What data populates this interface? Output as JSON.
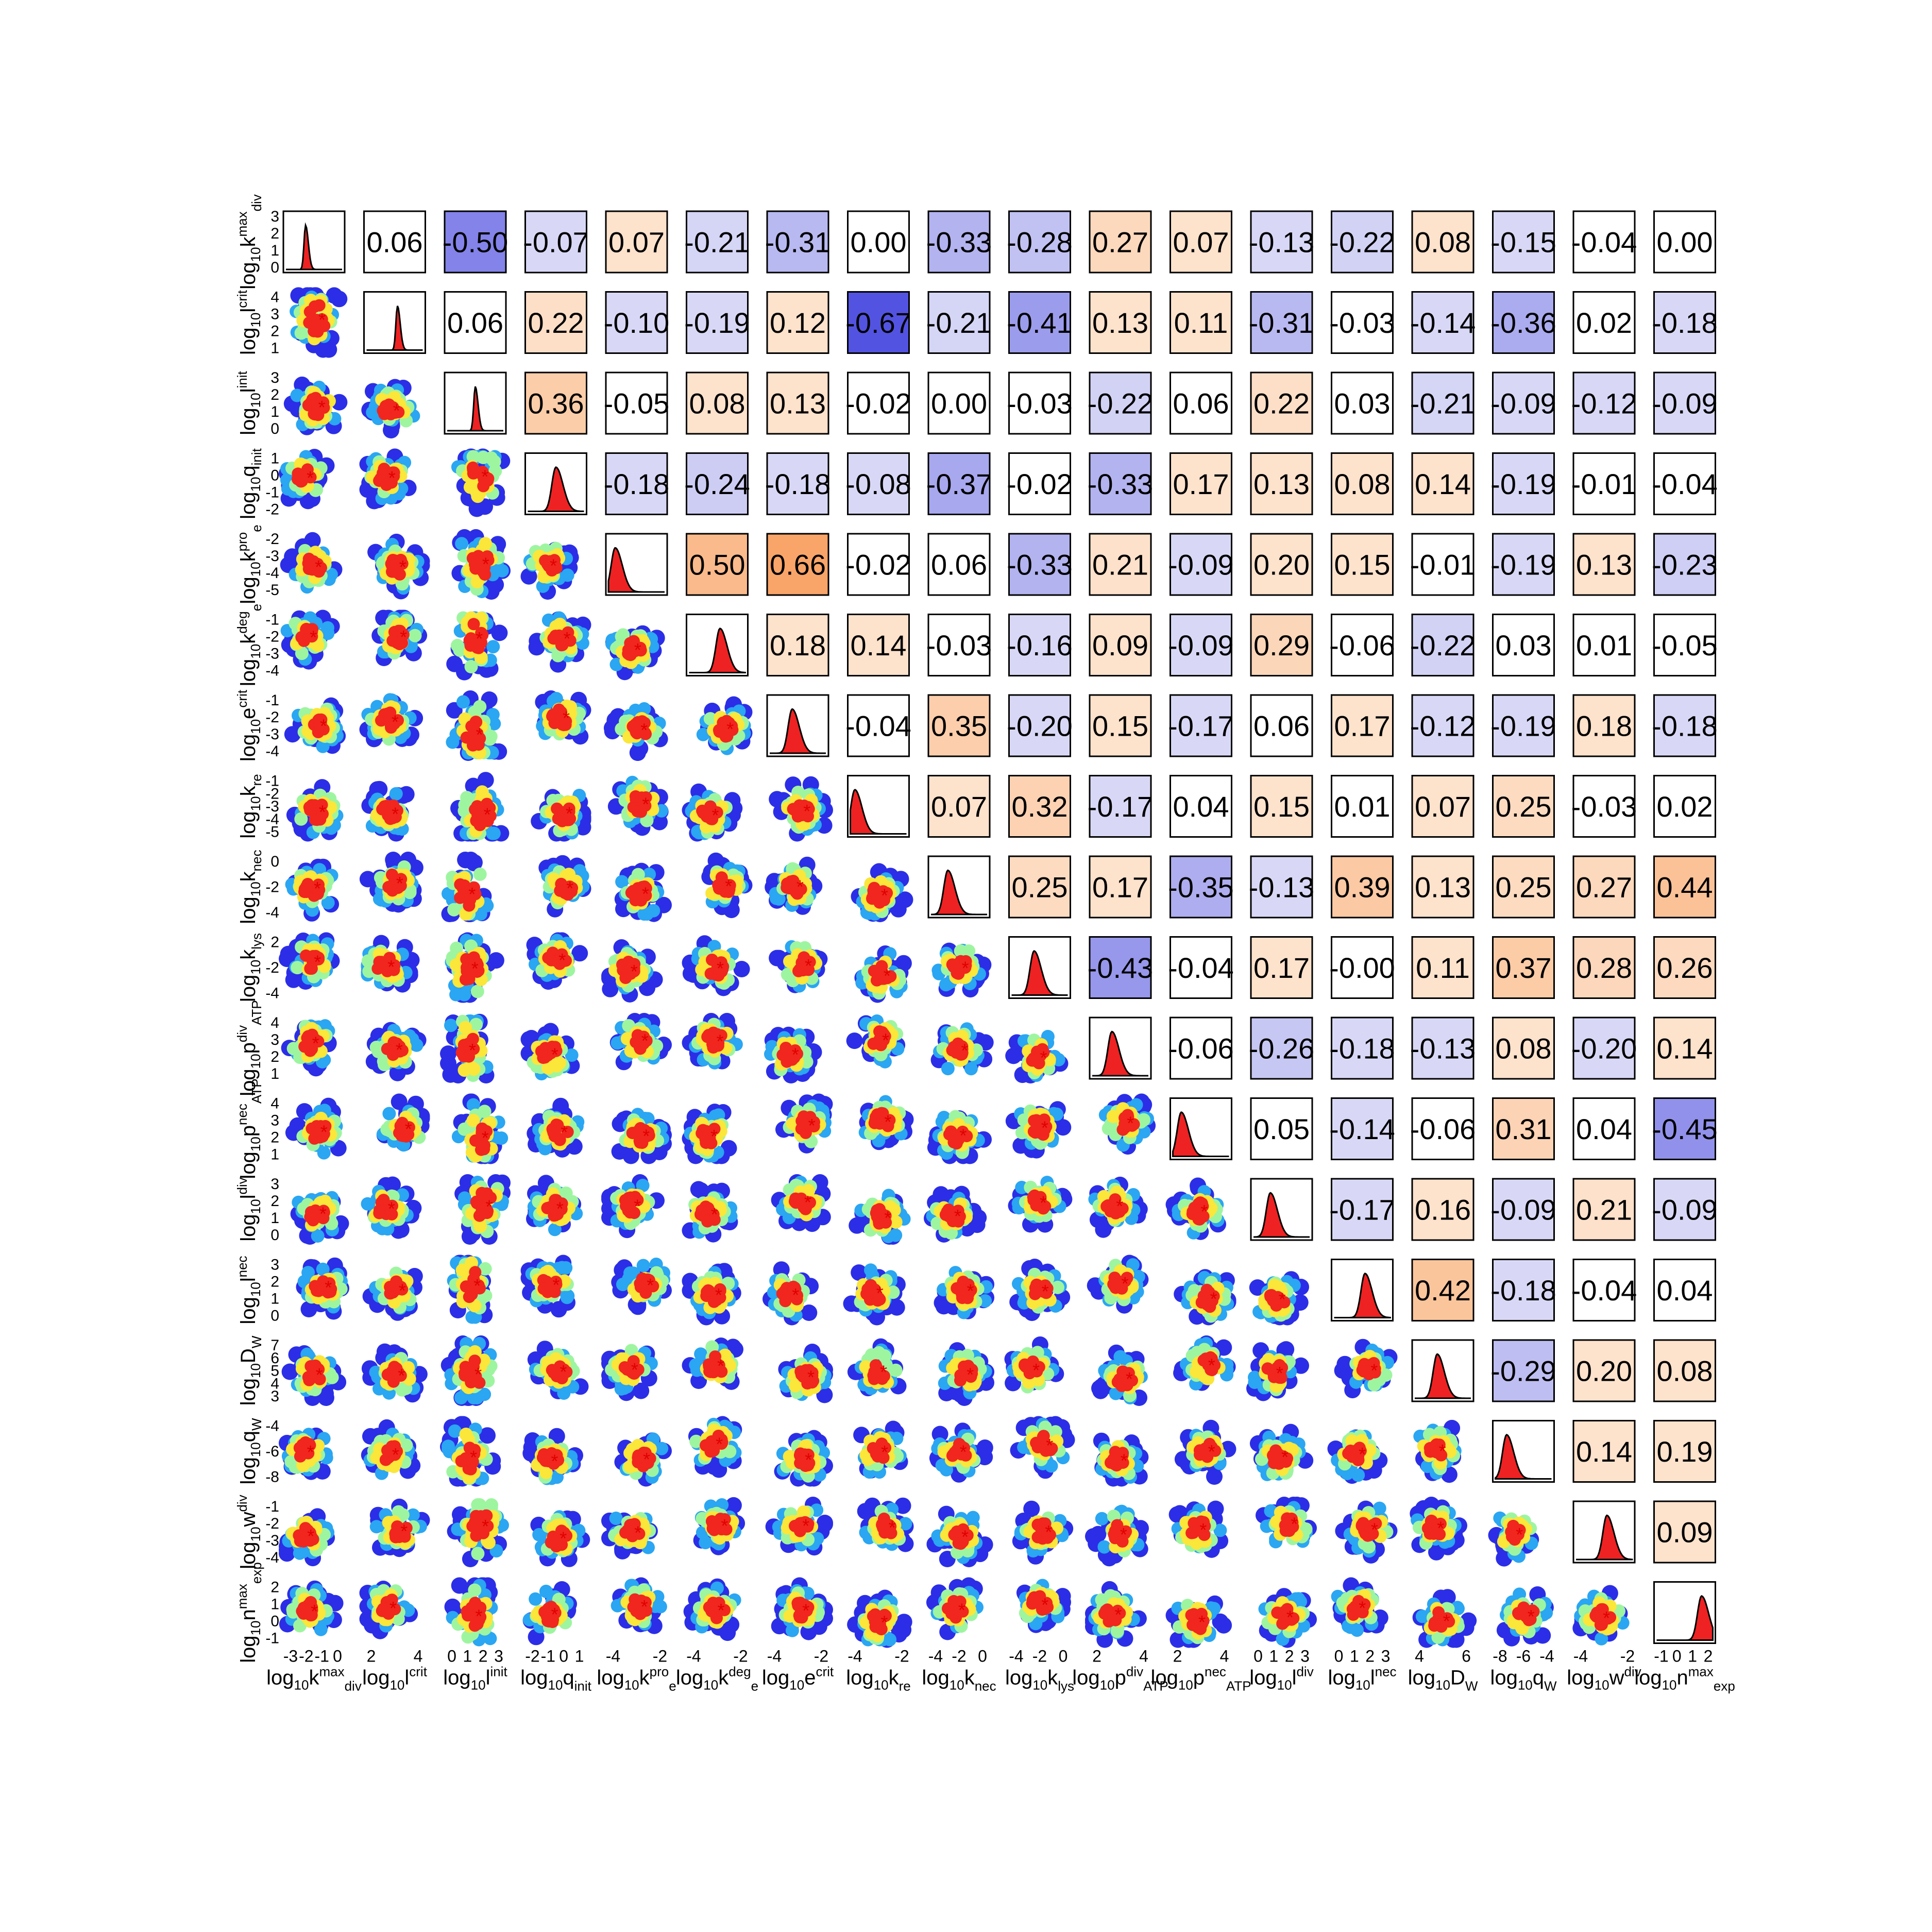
{
  "chart_data": {
    "type": "corner-plot",
    "description_free": true,
    "parameters": [
      {
        "label_base": "log",
        "label_sub": "10",
        "name": "k",
        "sup": "max",
        "sub": "div"
      },
      {
        "label_base": "log",
        "label_sub": "10",
        "name": "l",
        "sup": "crit",
        "sub": ""
      },
      {
        "label_base": "log",
        "label_sub": "10",
        "name": "l",
        "sup": "init",
        "sub": ""
      },
      {
        "label_base": "log",
        "label_sub": "10",
        "name": "q",
        "sup": "",
        "sub": "init"
      },
      {
        "label_base": "log",
        "label_sub": "10",
        "name": "k",
        "sup": "pro",
        "sub": "e"
      },
      {
        "label_base": "log",
        "label_sub": "10",
        "name": "k",
        "sup": "deg",
        "sub": "e"
      },
      {
        "label_base": "log",
        "label_sub": "10",
        "name": "e",
        "sup": "crit",
        "sub": ""
      },
      {
        "label_base": "log",
        "label_sub": "10",
        "name": "k",
        "sup": "",
        "sub": "re"
      },
      {
        "label_base": "log",
        "label_sub": "10",
        "name": "k",
        "sup": "",
        "sub": "nec"
      },
      {
        "label_base": "log",
        "label_sub": "10",
        "name": "k",
        "sup": "",
        "sub": "lys"
      },
      {
        "label_base": "log",
        "label_sub": "10",
        "name": "p",
        "sup": "div",
        "sub": "ATP"
      },
      {
        "label_base": "log",
        "label_sub": "10",
        "name": "p",
        "sup": "nec",
        "sub": "ATP"
      },
      {
        "label_base": "log",
        "label_sub": "10",
        "name": "l",
        "sup": "div",
        "sub": ""
      },
      {
        "label_base": "log",
        "label_sub": "10",
        "name": "l",
        "sup": "nec",
        "sub": ""
      },
      {
        "label_base": "log",
        "label_sub": "10",
        "name": "D",
        "sup": "",
        "sub": "W"
      },
      {
        "label_base": "log",
        "label_sub": "10",
        "name": "q",
        "sup": "",
        "sub": "W"
      },
      {
        "label_base": "log",
        "label_sub": "10",
        "name": "w",
        "sup": "div",
        "sub": ""
      },
      {
        "label_base": "log",
        "label_sub": "10",
        "name": "n",
        "sup": "max",
        "sub": "exp"
      }
    ],
    "x_tick_labels": [
      [
        "-3",
        "-2",
        "-1",
        "0"
      ],
      [
        "2",
        "4"
      ],
      [
        "0",
        "1",
        "2",
        "3"
      ],
      [
        "-2",
        "-1",
        "0",
        "1"
      ],
      [
        "-4",
        "-2"
      ],
      [
        "-4",
        "-2"
      ],
      [
        "-4",
        "-2"
      ],
      [
        "-4",
        "-2"
      ],
      [
        "-4",
        "-2",
        "0"
      ],
      [
        "-4",
        "-2",
        "0"
      ],
      [
        "2",
        "4"
      ],
      [
        "2",
        "4"
      ],
      [
        "0",
        "1",
        "2",
        "3"
      ],
      [
        "0",
        "1",
        "2",
        "3"
      ],
      [
        "4",
        "6"
      ],
      [
        "-8",
        "-6",
        "-4"
      ],
      [
        "-4",
        "-2"
      ],
      [
        "-1",
        "0",
        "1",
        "2"
      ]
    ],
    "y_tick_labels": [
      [
        "3",
        "2",
        "1",
        "0"
      ],
      [
        "4",
        "3",
        "2",
        "1"
      ],
      [
        "3",
        "2",
        "1",
        "0"
      ],
      [
        "1",
        "0",
        "-1",
        "-2"
      ],
      [
        "-2",
        "-3",
        "-4",
        "-5"
      ],
      [
        "-1",
        "-2",
        "-3",
        "-4"
      ],
      [
        "-1",
        "-2",
        "-3",
        "-4"
      ],
      [
        "-1",
        "-2",
        "-3",
        "-4",
        "-5"
      ],
      [
        "0",
        "-2",
        "-4"
      ],
      [
        "2",
        "-2",
        "-4"
      ],
      [
        "4",
        "3",
        "2",
        "1"
      ],
      [
        "4",
        "3",
        "2",
        "1"
      ],
      [
        "3",
        "2",
        "1",
        "0"
      ],
      [
        "3",
        "2",
        "1",
        "0"
      ],
      [
        "7",
        "6",
        "5",
        "4",
        "3"
      ],
      [
        "-4",
        "-6",
        "-8"
      ],
      [
        "-1",
        "-2",
        "-3",
        "-4"
      ],
      [
        "2",
        "1",
        "0",
        "-1"
      ]
    ],
    "correlation_upper_triangle": [
      [
        "0.06",
        "-0.50",
        "-0.07",
        "0.07",
        "-0.21",
        "-0.31",
        "0.00",
        "-0.33",
        "-0.28",
        "0.27",
        "0.07",
        "-0.13",
        "-0.22",
        "0.08",
        "-0.15",
        "-0.04",
        "0.00"
      ],
      [
        "0.06",
        "0.22",
        "-0.10",
        "-0.19",
        "0.12",
        "-0.67",
        "-0.21",
        "-0.41",
        "0.13",
        "0.11",
        "-0.31",
        "-0.03",
        "-0.14",
        "-0.36",
        "0.02",
        "-0.18"
      ],
      [
        "0.36",
        "-0.05",
        "0.08",
        "0.13",
        "-0.02",
        "0.00",
        "-0.03",
        "-0.22",
        "0.06",
        "0.22",
        "0.03",
        "-0.21",
        "-0.09",
        "-0.12",
        "-0.09"
      ],
      [
        "-0.18",
        "-0.24",
        "-0.18",
        "-0.08",
        "-0.37",
        "-0.02",
        "-0.33",
        "0.17",
        "0.13",
        "0.08",
        "0.14",
        "-0.19",
        "-0.01",
        "-0.04"
      ],
      [
        "0.50",
        "0.66",
        "-0.02",
        "0.06",
        "-0.33",
        "0.21",
        "-0.09",
        "0.20",
        "0.15",
        "-0.01",
        "-0.19",
        "0.13",
        "-0.23"
      ],
      [
        "0.18",
        "0.14",
        "-0.03",
        "-0.16",
        "0.09",
        "-0.09",
        "0.29",
        "-0.06",
        "-0.22",
        "0.03",
        "0.01",
        "-0.05"
      ],
      [
        "-0.04",
        "0.35",
        "-0.20",
        "0.15",
        "-0.17",
        "0.06",
        "0.17",
        "-0.12",
        "-0.19",
        "0.18",
        "-0.18"
      ],
      [
        "0.07",
        "0.32",
        "-0.17",
        "0.04",
        "0.15",
        "0.01",
        "0.07",
        "0.25",
        "-0.03",
        "0.02"
      ],
      [
        "0.25",
        "0.17",
        "-0.35",
        "-0.13",
        "0.39",
        "0.13",
        "0.25",
        "0.27",
        "0.44"
      ],
      [
        "-0.43",
        "-0.04",
        "0.17",
        "-0.00",
        "0.11",
        "0.37",
        "0.28",
        "0.26"
      ],
      [
        "-0.06",
        "-0.26",
        "-0.18",
        "-0.13",
        "0.08",
        "-0.20",
        "0.14"
      ],
      [
        "0.05",
        "-0.14",
        "-0.06",
        "0.31",
        "0.04",
        "-0.45"
      ],
      [
        "-0.17",
        "0.16",
        "-0.09",
        "0.21",
        "-0.09"
      ],
      [
        "0.42",
        "-0.18",
        "-0.04",
        "0.04"
      ],
      [
        "-0.29",
        "0.20",
        "0.08"
      ],
      [
        "0.14",
        "0.19"
      ],
      [
        "0.09"
      ]
    ],
    "diagonal_density_peak_fraction": [
      0.35,
      0.55,
      0.5,
      0.5,
      0.12,
      0.55,
      0.4,
      0.08,
      0.3,
      0.4,
      0.35,
      0.15,
      0.3,
      0.55,
      0.4,
      0.2,
      0.55,
      0.8
    ],
    "scatter_palette": {
      "outer": "#2b2ee6",
      "level2": "#2aa6f2",
      "level3": "#9ef5a0",
      "level4": "#fbe63a",
      "core": "#f0261f",
      "best_fit_marker": "#e00000"
    },
    "correlation_colors": {
      "negative_max": "#4a4ae0",
      "positive_max": "#f9a060",
      "neutral": "#ffffff"
    }
  }
}
